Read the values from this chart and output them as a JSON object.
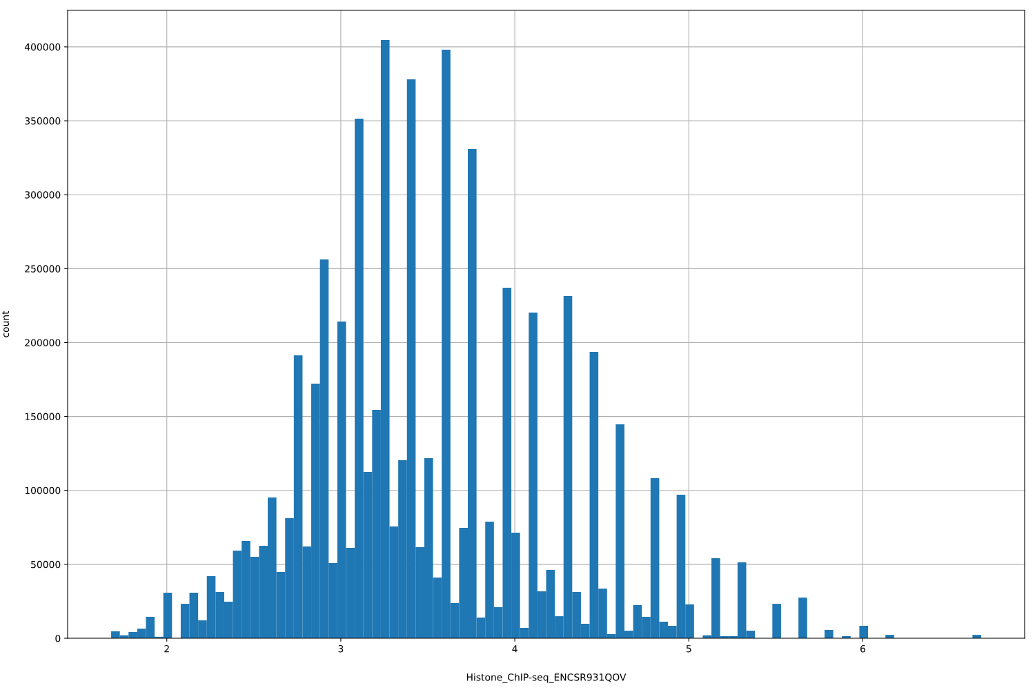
{
  "chart_data": {
    "type": "histogram",
    "xlabel": "Histone_ChIP-seq_ENCSR931QOV",
    "ylabel": "count",
    "color": "#1f77b4",
    "bins": [
      1.68,
      1.73,
      1.78,
      1.83,
      1.88,
      1.93,
      1.98,
      2.03,
      2.08,
      2.13,
      2.18,
      2.23,
      2.28,
      2.33,
      2.38,
      2.43,
      2.48,
      2.53,
      2.58,
      2.63,
      2.68,
      2.73,
      2.78,
      2.83,
      2.88,
      2.93,
      2.98,
      3.03,
      3.08,
      3.13,
      3.18,
      3.23,
      3.28,
      3.33,
      3.38,
      3.43,
      3.48,
      3.53,
      3.58,
      3.63,
      3.68,
      3.73,
      3.78,
      3.83,
      3.88,
      3.93,
      3.98,
      4.03,
      4.08,
      4.13,
      4.18,
      4.23,
      4.28,
      4.33,
      4.38,
      4.43,
      4.48,
      4.53,
      4.58,
      4.63,
      4.68,
      4.73,
      4.78,
      4.83,
      4.88,
      4.93,
      4.98,
      5.03,
      5.08,
      5.13,
      5.18,
      5.23,
      5.28,
      5.33,
      5.38,
      5.43,
      5.48,
      5.53,
      5.58,
      5.63,
      5.68,
      5.73,
      5.78,
      5.83,
      5.88,
      5.93,
      5.98,
      6.03,
      6.08,
      6.13,
      6.18,
      6.23,
      6.28,
      6.33,
      6.38,
      6.43,
      6.48,
      6.53,
      6.58,
      6.63,
      6.68
    ],
    "values": [
      4700,
      2000,
      4200,
      6500,
      14500,
      1000,
      30800,
      0,
      23300,
      30800,
      12100,
      42000,
      31300,
      24700,
      59300,
      65800,
      55100,
      62500,
      95200,
      44800,
      81200,
      191300,
      62100,
      172200,
      256200,
      50900,
      214200,
      61100,
      351400,
      112500,
      154500,
      404600,
      75600,
      120400,
      378000,
      61600,
      121800,
      41100,
      398100,
      23800,
      74700,
      330900,
      14000,
      78900,
      21000,
      237100,
      71400,
      7000,
      220300,
      31700,
      46200,
      14900,
      231500,
      31300,
      9800,
      193700,
      33600,
      2800,
      144700,
      5100,
      22400,
      14500,
      108300,
      11200,
      8400,
      97100,
      22900,
      0,
      2000,
      54100,
      1400,
      1400,
      51300,
      5100,
      0,
      0,
      23300,
      0,
      0,
      27500,
      0,
      0,
      5600,
      0,
      1400,
      0,
      8400,
      0,
      0,
      2300,
      0,
      0,
      0,
      0,
      0,
      0,
      0,
      0,
      0,
      2300
    ],
    "xlim": [
      1.43,
      6.93
    ],
    "ylim": [
      0,
      424700
    ],
    "xticks": [
      2,
      3,
      4,
      5,
      6
    ],
    "yticks": [
      0,
      50000,
      100000,
      150000,
      200000,
      250000,
      300000,
      350000,
      400000
    ],
    "grid": true
  }
}
